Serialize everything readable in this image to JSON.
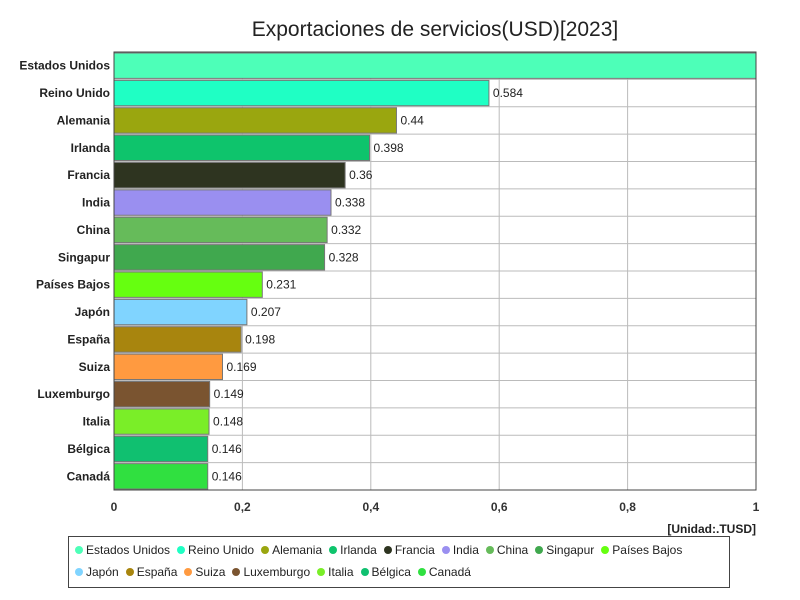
{
  "chart_data": {
    "type": "bar",
    "orientation": "horizontal",
    "title": "Exportaciones de servicios(USD)[2023]",
    "unit_label": "[Unidad:.TUSD]",
    "xlim": [
      0,
      1
    ],
    "x_ticks": [
      "0",
      "0,2",
      "0,4",
      "0,6",
      "0,8",
      "1"
    ],
    "grid": true,
    "legend_position": "bottom",
    "categories": [
      "Estados Unidos",
      "Reino Unido",
      "Alemania",
      "Irlanda",
      "Francia",
      "India",
      "China",
      "Singapur",
      "Países Bajos",
      "Japón",
      "España",
      "Suiza",
      "Luxemburgo",
      "Italia",
      "Bélgica",
      "Canadá"
    ],
    "values": [
      1,
      0.584,
      0.44,
      0.398,
      0.36,
      0.338,
      0.332,
      0.328,
      0.231,
      0.207,
      0.198,
      0.169,
      0.149,
      0.148,
      0.146,
      0.146
    ],
    "value_labels": [
      "",
      "0.584",
      "0.44",
      "0.398",
      "0.36",
      "0.338",
      "0.332",
      "0.328",
      "0.231",
      "0.207",
      "0.198",
      "0.169",
      "0.149",
      "0.148",
      "0.146",
      "0.146"
    ],
    "colors": [
      "#4dffb8",
      "#1fffc4",
      "#9aa60f",
      "#0ec46c",
      "#2e3420",
      "#9a8ff0",
      "#66bb5a",
      "#40a84e",
      "#66ff10",
      "#80d4ff",
      "#a8850e",
      "#ff9a40",
      "#7a5430",
      "#7aee28",
      "#10c070",
      "#30e040"
    ]
  }
}
